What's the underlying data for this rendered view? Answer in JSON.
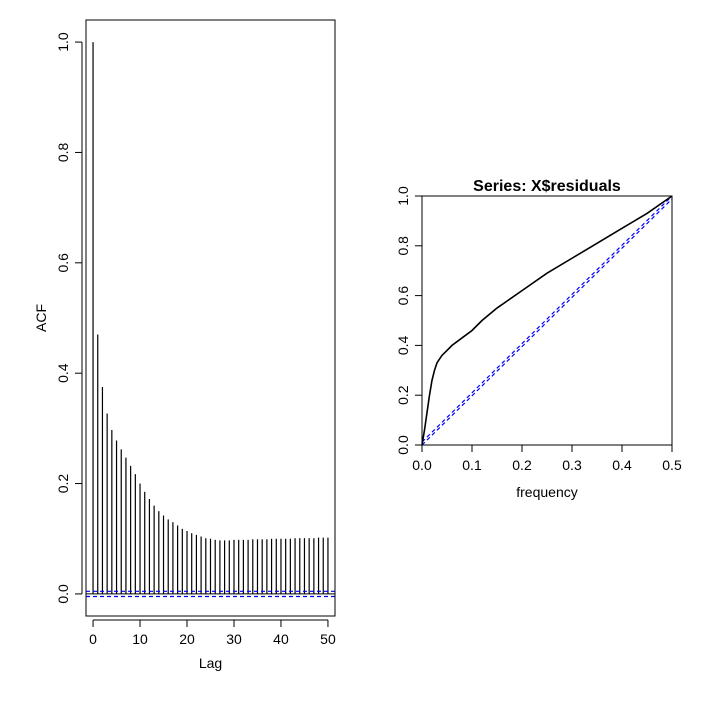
{
  "chart_data": [
    {
      "type": "bar",
      "subtype": "acf-spikes",
      "title": "",
      "xlabel": "Lag",
      "ylabel": "ACF",
      "xlim": [
        -1.5,
        51.5
      ],
      "ylim": [
        -0.04,
        1.04
      ],
      "xticks": [
        0,
        10,
        20,
        30,
        40,
        50
      ],
      "yticks": [
        0.0,
        0.2,
        0.4,
        0.6,
        0.8,
        1.0
      ],
      "xtick_labels": [
        "0",
        "10",
        "20",
        "30",
        "40",
        "50"
      ],
      "ytick_labels": [
        "0.0",
        "0.2",
        "0.4",
        "0.6",
        "0.8",
        "1.0"
      ],
      "lags": [
        0,
        1,
        2,
        3,
        4,
        5,
        6,
        7,
        8,
        9,
        10,
        11,
        12,
        13,
        14,
        15,
        16,
        17,
        18,
        19,
        20,
        21,
        22,
        23,
        24,
        25,
        26,
        27,
        28,
        29,
        30,
        31,
        32,
        33,
        34,
        35,
        36,
        37,
        38,
        39,
        40,
        41,
        42,
        43,
        44,
        45,
        46,
        47,
        48,
        49,
        50
      ],
      "values": [
        1.0,
        0.47,
        0.375,
        0.327,
        0.297,
        0.278,
        0.262,
        0.247,
        0.232,
        0.217,
        0.2,
        0.185,
        0.172,
        0.16,
        0.15,
        0.142,
        0.135,
        0.13,
        0.124,
        0.118,
        0.114,
        0.11,
        0.107,
        0.104,
        0.101,
        0.1,
        0.098,
        0.097,
        0.097,
        0.097,
        0.098,
        0.098,
        0.098,
        0.098,
        0.099,
        0.099,
        0.099,
        0.099,
        0.1,
        0.1,
        0.1,
        0.1,
        0.1,
        0.101,
        0.101,
        0.101,
        0.101,
        0.101,
        0.102,
        0.102,
        0.102
      ],
      "confidence_band": [
        -0.0047,
        0.0047
      ],
      "hline": 0,
      "colors": {
        "spikes": "#000000",
        "band": "#0000ff",
        "frame": "#000000"
      },
      "grid": false
    },
    {
      "type": "line",
      "subtype": "cumulative-periodogram",
      "title": "Series:  X$residuals",
      "xlabel": "frequency",
      "ylabel": "",
      "xlim": [
        0,
        0.5
      ],
      "ylim": [
        0,
        1
      ],
      "xticks": [
        0.0,
        0.1,
        0.2,
        0.3,
        0.4,
        0.5
      ],
      "yticks": [
        0.0,
        0.2,
        0.4,
        0.6,
        0.8,
        1.0
      ],
      "xtick_labels": [
        "0.0",
        "0.1",
        "0.2",
        "0.3",
        "0.4",
        "0.5"
      ],
      "ytick_labels": [
        "0.0",
        "0.2",
        "0.4",
        "0.6",
        "0.8",
        "1.0"
      ],
      "series": [
        {
          "x": [
            0,
            0.005,
            0.01,
            0.015,
            0.02,
            0.025,
            0.03,
            0.04,
            0.05,
            0.06,
            0.08,
            0.1,
            0.12,
            0.15,
            0.2,
            0.25,
            0.3,
            0.35,
            0.4,
            0.45,
            0.5
          ],
          "y": [
            0,
            0.06,
            0.13,
            0.2,
            0.26,
            0.3,
            0.33,
            0.36,
            0.38,
            0.4,
            0.43,
            0.46,
            0.5,
            0.55,
            0.62,
            0.69,
            0.75,
            0.81,
            0.87,
            0.93,
            1.0
          ],
          "color": "#000000"
        }
      ],
      "reference_lines": [
        {
          "x": [
            0.0,
            0.5
          ],
          "y": [
            0.012,
            1.012
          ]
        },
        {
          "x": [
            0.0,
            0.5
          ],
          "y": [
            -0.012,
            0.988
          ]
        }
      ],
      "colors": {
        "curve": "#000000",
        "reference": "#0000ff"
      },
      "grid": false
    }
  ]
}
